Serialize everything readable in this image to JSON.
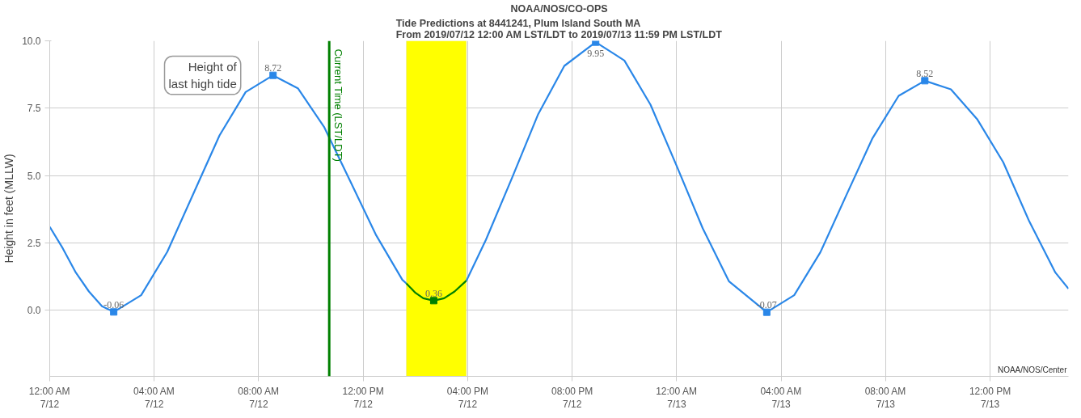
{
  "chart_data": {
    "type": "line",
    "title": "NOAA/NOS/CO-OPS",
    "subtitle": "Tide Predictions at 8441241, Plum Island South MA\nFrom 2019/07/12 12:00 AM LST/LDT to 2019/07/13 11:59 PM LST/LDT",
    "ylabel": "Height in feet (MLLW)",
    "xlim": [
      "2019-07-12T00:00",
      "2019-07-13T15:00"
    ],
    "ylim": [
      -2.45,
      10
    ],
    "xticks": [
      {
        "value": "2019-07-12T00:00",
        "label": "12:00 AM\n7/12"
      },
      {
        "value": "2019-07-12T04:00",
        "label": "04:00 AM\n7/12"
      },
      {
        "value": "2019-07-12T08:00",
        "label": "08:00 AM\n7/12"
      },
      {
        "value": "2019-07-12T12:00",
        "label": "12:00 PM\n7/12"
      },
      {
        "value": "2019-07-12T16:00",
        "label": "04:00 PM\n7/12"
      },
      {
        "value": "2019-07-12T20:00",
        "label": "08:00 PM\n7/12"
      },
      {
        "value": "2019-07-13T00:00",
        "label": "12:00 AM\n7/13"
      },
      {
        "value": "2019-07-13T04:00",
        "label": "04:00 AM\n7/13"
      },
      {
        "value": "2019-07-13T08:00",
        "label": "08:00 AM\n7/13"
      },
      {
        "value": "2019-07-13T12:00",
        "label": "12:00 PM\n7/13"
      }
    ],
    "yticks": [
      {
        "value": 0,
        "label": "0.0"
      },
      {
        "value": 2.5,
        "label": "2.5"
      },
      {
        "value": 5,
        "label": "5.0"
      },
      {
        "value": 7.5,
        "label": "7.5"
      },
      {
        "value": 10,
        "label": "10.0"
      }
    ],
    "grid": true,
    "series": [
      {
        "color": "#2a87e8",
        "x": [
          "2019-07-12T00:00",
          "2019-07-12T00:30",
          "2019-07-12T01:00",
          "2019-07-12T01:30",
          "2019-07-12T02:00",
          "2019-07-12T02:27",
          "2019-07-12T03:30",
          "2019-07-12T04:30",
          "2019-07-12T05:30",
          "2019-07-12T06:30",
          "2019-07-12T07:30",
          "2019-07-12T08:33",
          "2019-07-12T09:30",
          "2019-07-12T10:30",
          "2019-07-12T11:30",
          "2019-07-12T12:30",
          "2019-07-12T13:30",
          "2019-07-12T13:39",
          "2019-07-12T14:42",
          "2019-07-12T15:57",
          "2019-07-12T16:42",
          "2019-07-12T17:42",
          "2019-07-12T18:42",
          "2019-07-12T19:42",
          "2019-07-12T20:54",
          "2019-07-12T22:00",
          "2019-07-12T23:00",
          "2019-07-13T00:00",
          "2019-07-13T01:00",
          "2019-07-13T02:00",
          "2019-07-13T03:27",
          "2019-07-13T04:30",
          "2019-07-13T05:30",
          "2019-07-13T06:30",
          "2019-07-13T07:30",
          "2019-07-13T08:30",
          "2019-07-13T09:30",
          "2019-07-13T10:30",
          "2019-07-13T11:30",
          "2019-07-13T12:30",
          "2019-07-13T13:30",
          "2019-07-13T14:30",
          "2019-07-13T15:00"
        ],
        "values": [
          3.1,
          2.3,
          1.4,
          0.7,
          0.15,
          -0.06,
          0.56,
          2.17,
          4.33,
          6.49,
          8.1,
          8.72,
          8.24,
          6.81,
          4.8,
          2.78,
          1.13,
          1.0,
          null,
          1.1,
          2.62,
          4.92,
          7.28,
          9.07,
          9.95,
          9.27,
          7.63,
          5.36,
          3.04,
          1.08,
          -0.07,
          0.56,
          2.15,
          4.28,
          6.39,
          7.96,
          8.52,
          8.2,
          7.1,
          5.5,
          3.3,
          1.4,
          0.8
        ]
      },
      {
        "color": "#008000",
        "x": [
          "2019-07-12T13:39",
          "2019-07-12T14:00",
          "2019-07-12T14:18",
          "2019-07-12T14:42",
          "2019-07-12T15:06",
          "2019-07-12T15:30",
          "2019-07-12T15:57"
        ],
        "values": [
          1.0,
          0.65,
          0.45,
          0.36,
          0.45,
          0.7,
          1.1
        ]
      },
      {
        "type": "scatter",
        "marker": "square",
        "data_labels": true,
        "x": [
          "2019-07-12T02:27",
          "2019-07-12T08:33",
          "2019-07-12T14:42",
          "2019-07-12T20:54",
          "2019-07-13T03:27",
          "2019-07-13T09:30"
        ],
        "values": [
          -0.06,
          8.72,
          0.36,
          9.95,
          -0.07,
          8.52
        ],
        "colors": [
          "#2a87e8",
          "#2a87e8",
          "#008000",
          "#2a87e8",
          "#2a87e8",
          "#2a87e8"
        ]
      }
    ],
    "ref_lines": [
      {
        "axis": "x",
        "value": "2019-07-12T10:42",
        "label": "Current Time (LST/LDT)",
        "color": "#008000"
      }
    ],
    "bands": [
      {
        "axis": "x",
        "from": "2019-07-12T13:39",
        "to": "2019-07-12T15:57",
        "color": "#ffff00"
      }
    ],
    "annotations": [
      {
        "text": "Height of\nlast high tide",
        "x": "2019-07-12T08:33",
        "y": 8.72
      },
      "NOAA/NOS/Center"
    ]
  }
}
